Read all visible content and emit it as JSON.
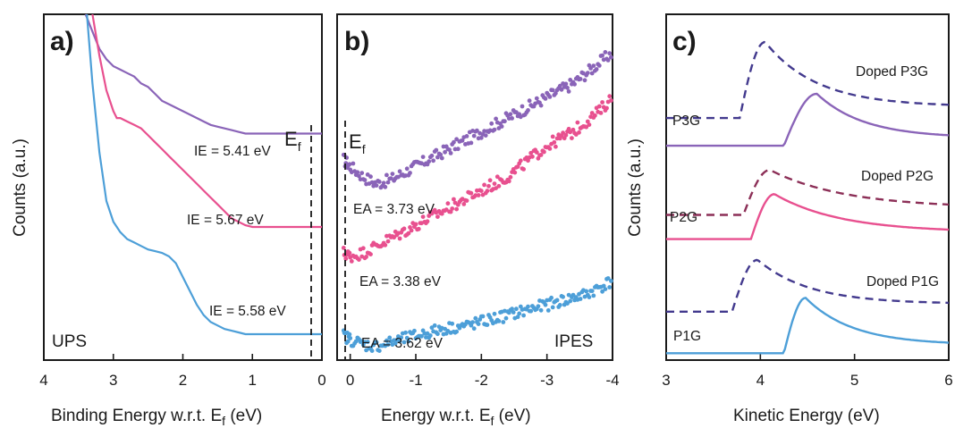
{
  "colors": {
    "purple": "#8a64b8",
    "pink": "#e8508f",
    "blue": "#4d9fd8",
    "navy": "#433a8e",
    "maroon": "#8c2f57",
    "black": "#1a1a1a"
  },
  "y_axis_label": "Counts (a.u.)",
  "chart_data": [
    {
      "type": "line",
      "panel_label": "a)",
      "tag": "UPS",
      "xlabel": "Binding Energy w.r.t. E",
      "xlabel_sub": "f",
      "xlabel_unit": " (eV)",
      "xlim": [
        4,
        0
      ],
      "xticks": [
        "4",
        "3",
        "2",
        "1",
        "0"
      ],
      "fermi_marker": {
        "text": "E",
        "sub": "f",
        "x": 0
      },
      "series": [
        {
          "color": "purple",
          "x": [
            3.4,
            3.3,
            3.2,
            3.1,
            3.0,
            2.9,
            2.8,
            2.7,
            2.6,
            2.5,
            2.4,
            2.3,
            2.2,
            2.1,
            2.0,
            1.9,
            1.8,
            1.7,
            1.6,
            1.5,
            1.4,
            1.3,
            1.2,
            1.1,
            1.0,
            0.8,
            0.6,
            0.4,
            0.2,
            0.0
          ],
          "y": [
            1.02,
            0.95,
            0.9,
            0.87,
            0.85,
            0.84,
            0.83,
            0.82,
            0.8,
            0.79,
            0.77,
            0.75,
            0.74,
            0.73,
            0.72,
            0.71,
            0.7,
            0.69,
            0.68,
            0.675,
            0.67,
            0.665,
            0.66,
            0.655,
            0.655,
            0.655,
            0.655,
            0.655,
            0.655,
            0.655
          ]
        },
        {
          "color": "pink",
          "x": [
            3.3,
            3.2,
            3.1,
            3.0,
            2.95,
            2.9,
            2.8,
            2.7,
            2.6,
            2.5,
            2.4,
            2.3,
            2.2,
            2.1,
            2.0,
            1.9,
            1.8,
            1.7,
            1.6,
            1.5,
            1.4,
            1.3,
            1.2,
            1.1,
            1.0,
            0.8,
            0.6,
            0.4,
            0.2,
            0.0
          ],
          "y": [
            1.02,
            0.88,
            0.78,
            0.72,
            0.7,
            0.7,
            0.69,
            0.68,
            0.67,
            0.65,
            0.63,
            0.61,
            0.59,
            0.57,
            0.55,
            0.53,
            0.51,
            0.49,
            0.47,
            0.45,
            0.43,
            0.41,
            0.4,
            0.39,
            0.385,
            0.385,
            0.385,
            0.385,
            0.385,
            0.385
          ]
        },
        {
          "color": "blue",
          "x": [
            3.38,
            3.3,
            3.2,
            3.1,
            3.0,
            2.9,
            2.8,
            2.7,
            2.6,
            2.5,
            2.4,
            2.3,
            2.2,
            2.1,
            2.0,
            1.9,
            1.8,
            1.7,
            1.6,
            1.5,
            1.4,
            1.3,
            1.2,
            1.1,
            1.0,
            0.8,
            0.6,
            0.4,
            0.2,
            0.0
          ],
          "y": [
            1.02,
            0.8,
            0.6,
            0.46,
            0.4,
            0.37,
            0.35,
            0.34,
            0.33,
            0.32,
            0.315,
            0.31,
            0.3,
            0.28,
            0.24,
            0.2,
            0.16,
            0.13,
            0.11,
            0.1,
            0.09,
            0.085,
            0.08,
            0.075,
            0.075,
            0.075,
            0.075,
            0.075,
            0.075,
            0.075
          ]
        }
      ],
      "annotations": [
        "IE = 5.41 eV",
        "IE = 5.67 eV",
        "IE = 5.58 eV"
      ]
    },
    {
      "type": "scatter",
      "panel_label": "b)",
      "tag": "IPES",
      "xlabel": "Energy w.r.t. E",
      "xlabel_sub": "f",
      "xlabel_unit": " (eV)",
      "xlim": [
        0.2,
        -4
      ],
      "xticks": [
        "0",
        "-1",
        "-2",
        "-3",
        "-4"
      ],
      "fermi_marker": {
        "text": "E",
        "sub": "f",
        "x": 0
      },
      "series": [
        {
          "color": "purple",
          "x": [
            0.1,
            0.0,
            -0.2,
            -0.4,
            -0.6,
            -0.8,
            -1.0,
            -1.2,
            -1.4,
            -1.6,
            -1.8,
            -2.0,
            -2.2,
            -2.4,
            -2.6,
            -2.8,
            -3.0,
            -3.2,
            -3.4,
            -3.6,
            -3.8,
            -4.0
          ],
          "y": [
            0.58,
            0.56,
            0.53,
            0.51,
            0.52,
            0.54,
            0.56,
            0.58,
            0.6,
            0.62,
            0.64,
            0.66,
            0.68,
            0.7,
            0.72,
            0.74,
            0.76,
            0.78,
            0.8,
            0.83,
            0.86,
            0.89
          ]
        },
        {
          "color": "pink",
          "x": [
            0.1,
            0.0,
            -0.2,
            -0.4,
            -0.6,
            -0.8,
            -1.0,
            -1.2,
            -1.4,
            -1.6,
            -1.8,
            -2.0,
            -2.2,
            -2.4,
            -2.6,
            -2.8,
            -3.0,
            -3.2,
            -3.4,
            -3.6,
            -3.8,
            -4.0
          ],
          "y": [
            0.31,
            0.3,
            0.31,
            0.33,
            0.35,
            0.37,
            0.39,
            0.41,
            0.43,
            0.45,
            0.47,
            0.49,
            0.51,
            0.53,
            0.56,
            0.59,
            0.62,
            0.64,
            0.66,
            0.69,
            0.72,
            0.76
          ]
        },
        {
          "color": "blue",
          "x": [
            0.1,
            0.0,
            -0.2,
            -0.4,
            -0.6,
            -0.8,
            -1.0,
            -1.2,
            -1.4,
            -1.6,
            -1.8,
            -2.0,
            -2.2,
            -2.4,
            -2.6,
            -2.8,
            -3.0,
            -3.2,
            -3.4,
            -3.6,
            -3.8,
            -4.0
          ],
          "y": [
            0.07,
            0.06,
            0.045,
            0.04,
            0.05,
            0.06,
            0.07,
            0.08,
            0.09,
            0.095,
            0.1,
            0.11,
            0.12,
            0.13,
            0.14,
            0.15,
            0.16,
            0.17,
            0.18,
            0.19,
            0.21,
            0.23
          ]
        }
      ],
      "annotations": [
        "EA = 3.73 eV",
        "EA = 3.38 eV",
        "EA = 3.62 eV"
      ]
    },
    {
      "type": "line",
      "panel_label": "c)",
      "xlabel": "Kinetic Energy (eV)",
      "xlim": [
        3,
        6
      ],
      "xticks": [
        "3",
        "4",
        "5",
        "6"
      ],
      "series": [
        {
          "name": "Doped P3G",
          "color": "navy",
          "dashed": true,
          "offset": 0.7,
          "peak": 4.05,
          "amp": 0.22,
          "rise": 0.1,
          "tail": 0.55,
          "base": 0.0,
          "cut": 3.78
        },
        {
          "name": "P3G",
          "color": "purple",
          "dashed": false,
          "offset": 0.62,
          "peak": 4.6,
          "amp": 0.15,
          "rise": 0.12,
          "tail": 0.5,
          "base": 0.0,
          "cut": 4.25
        },
        {
          "name": "Doped P2G",
          "color": "maroon",
          "dashed": true,
          "offset": 0.42,
          "peak": 4.1,
          "amp": 0.13,
          "rise": 0.1,
          "tail": 0.8,
          "base": 0.0,
          "cut": 3.82
        },
        {
          "name": "P2G",
          "color": "pink",
          "dashed": false,
          "offset": 0.35,
          "peak": 4.15,
          "amp": 0.13,
          "rise": 0.08,
          "tail": 0.7,
          "base": 0.0,
          "cut": 3.9
        },
        {
          "name": "Doped P1G",
          "color": "navy",
          "dashed": true,
          "offset": 0.14,
          "peak": 3.97,
          "amp": 0.15,
          "rise": 0.1,
          "tail": 0.55,
          "base": 0.0,
          "cut": 3.7
        },
        {
          "name": "P1G",
          "color": "blue",
          "dashed": false,
          "offset": 0.02,
          "peak": 4.48,
          "amp": 0.16,
          "rise": 0.07,
          "tail": 0.5,
          "base": 0.0,
          "cut": 4.25
        }
      ]
    }
  ]
}
